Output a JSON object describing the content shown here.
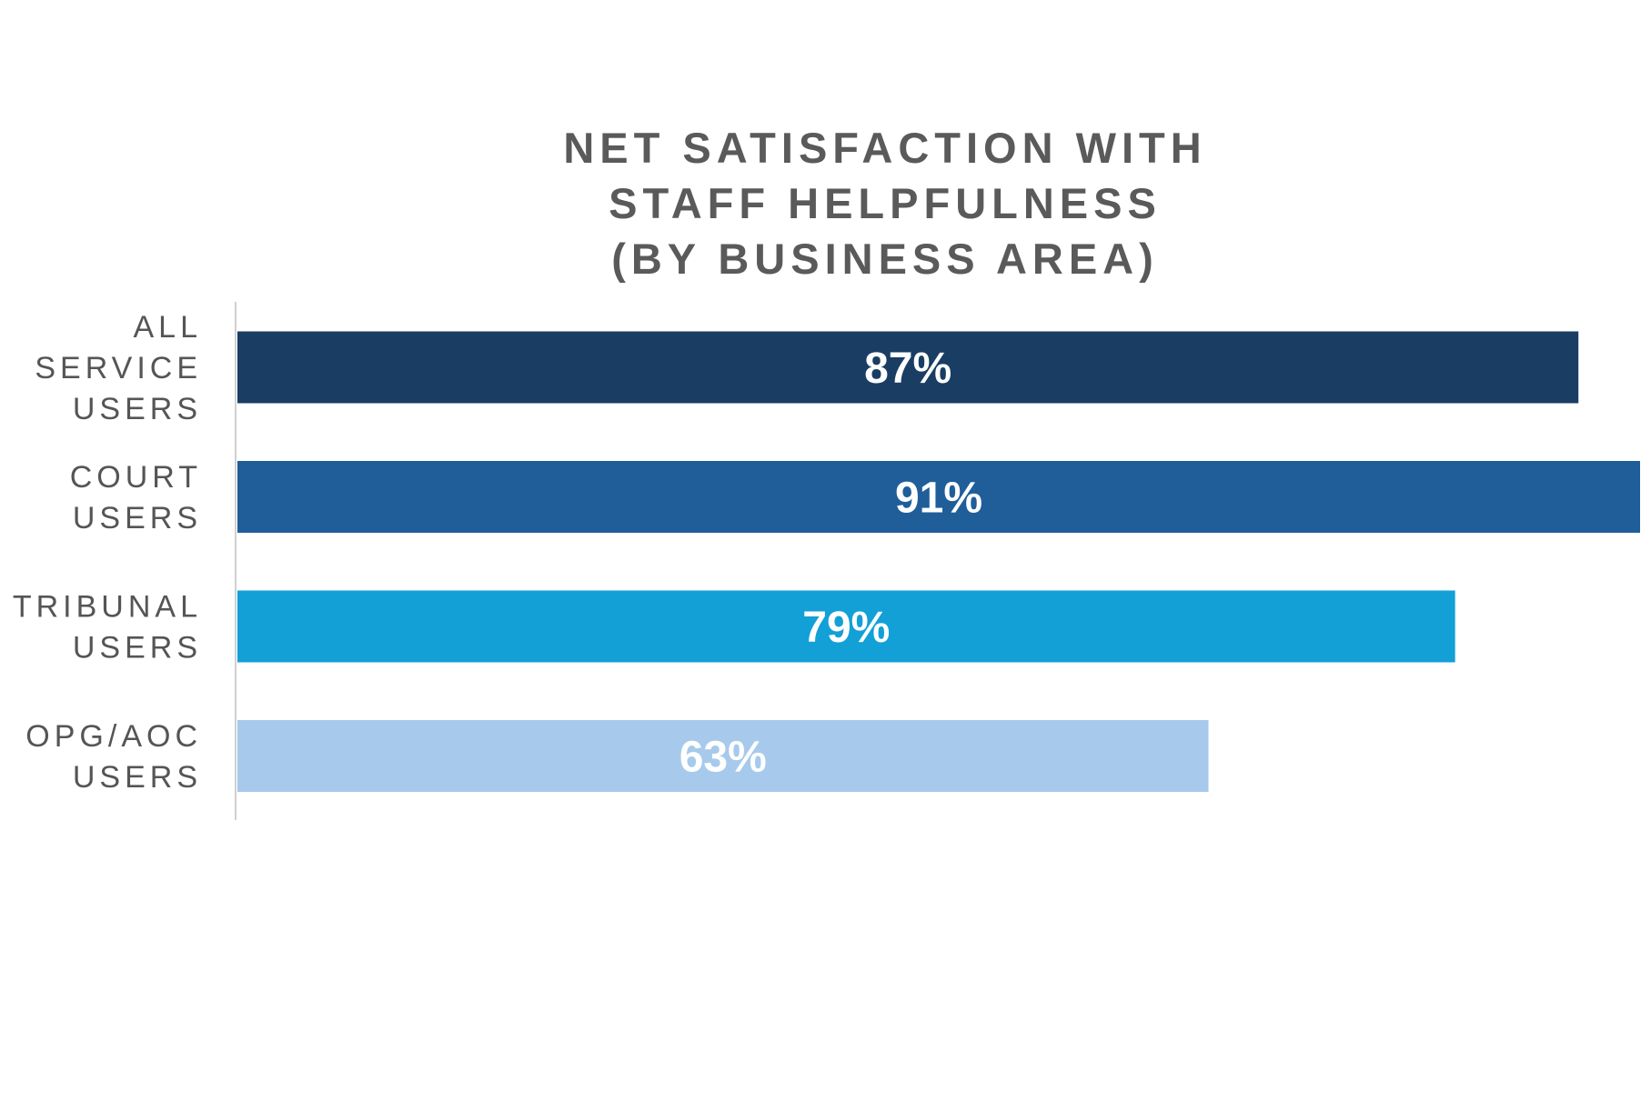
{
  "chart_data": {
    "type": "bar",
    "orientation": "horizontal",
    "title_lines": [
      "NET SATISFACTION WITH",
      "STAFF HELPFULNESS",
      "(BY BUSINESS AREA)"
    ],
    "categories": [
      [
        "ALL",
        "SERVICE",
        "USERS"
      ],
      [
        "COURT",
        "USERS"
      ],
      [
        "TRIBUNAL",
        "USERS"
      ],
      [
        "OPG/AOC",
        "USERS"
      ]
    ],
    "values": [
      87,
      91,
      79,
      63
    ],
    "data_labels": [
      "87%",
      "91%",
      "79%",
      "63%"
    ],
    "colors": [
      "#1a3d63",
      "#205e99",
      "#12a0d7",
      "#a7caec"
    ],
    "xlim": [
      0,
      91
    ],
    "grid": false,
    "legend": "none"
  }
}
